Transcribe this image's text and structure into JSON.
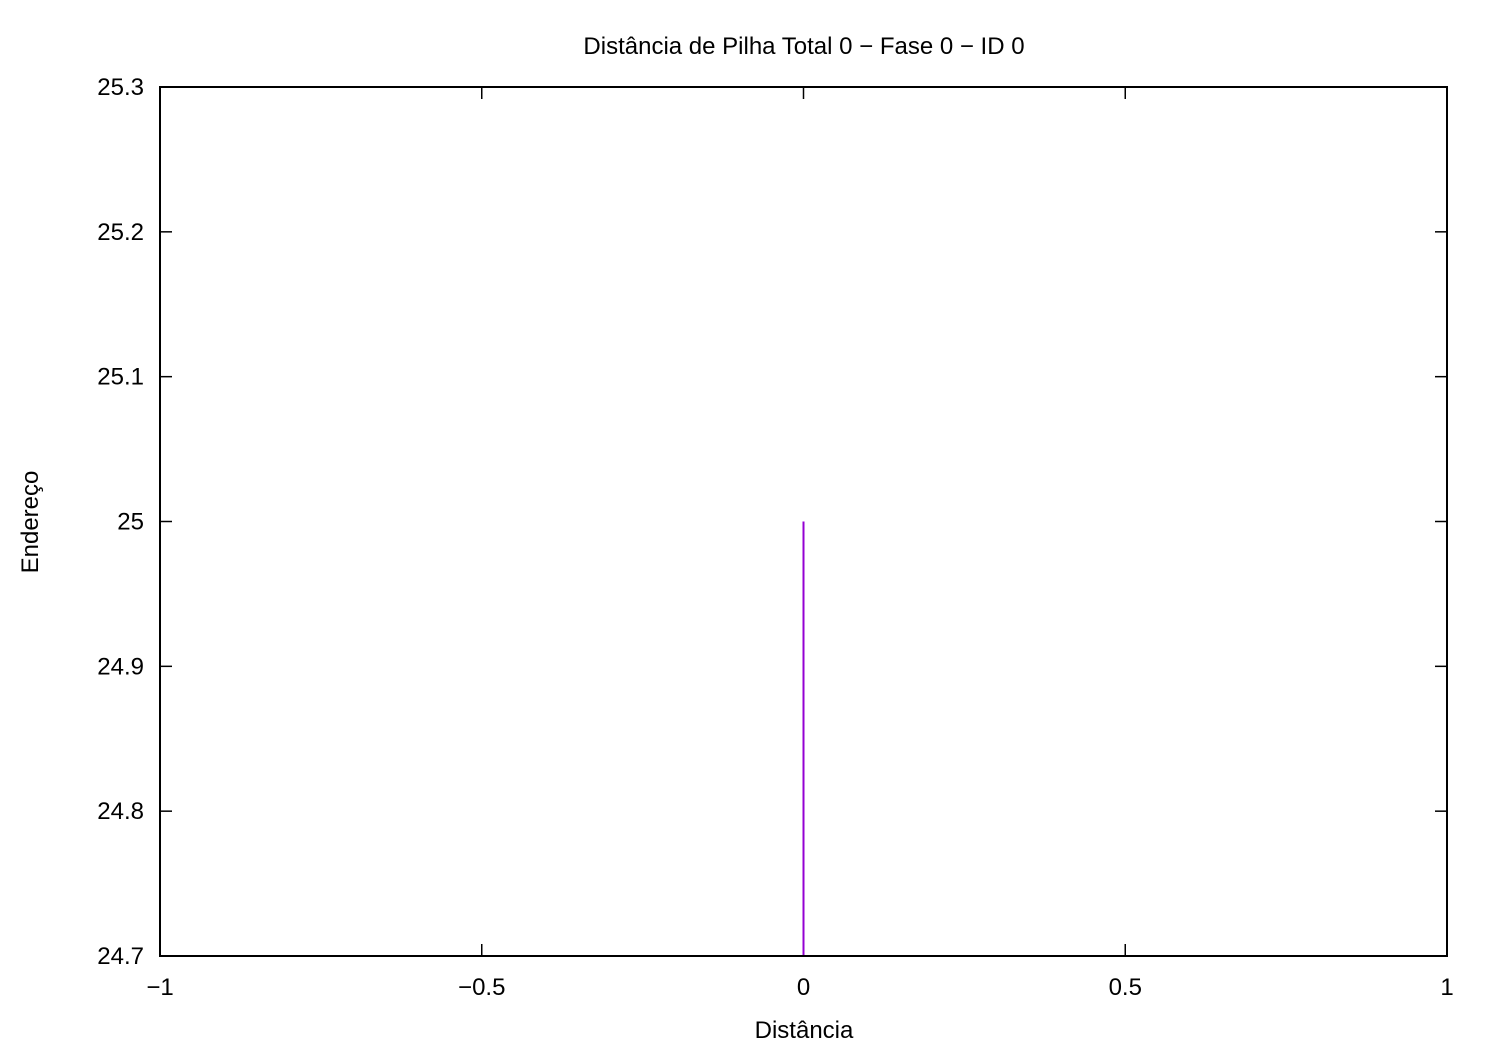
{
  "chart_data": {
    "type": "line",
    "title": "Distância de Pilha Total 0 − Fase  0 − ID 0",
    "xlabel": "Distância",
    "ylabel": "Endereço",
    "xlim": [
      -1,
      1
    ],
    "ylim": [
      24.7,
      25.3
    ],
    "x_ticks": [
      -1,
      -0.5,
      0,
      0.5,
      1
    ],
    "x_tick_labels": [
      "−1",
      "−0.5",
      "0",
      "0.5",
      "1"
    ],
    "y_ticks": [
      24.7,
      24.8,
      24.9,
      25,
      25.1,
      25.2,
      25.3
    ],
    "y_tick_labels": [
      "24.7",
      "24.8",
      "24.9",
      "25",
      "25.1",
      "25.2",
      "25.3"
    ],
    "grid": false,
    "legend": "none",
    "series": [
      {
        "color": "#9400d3",
        "style": "impulses",
        "points": [
          {
            "x": 0,
            "y": 25
          }
        ]
      }
    ]
  }
}
